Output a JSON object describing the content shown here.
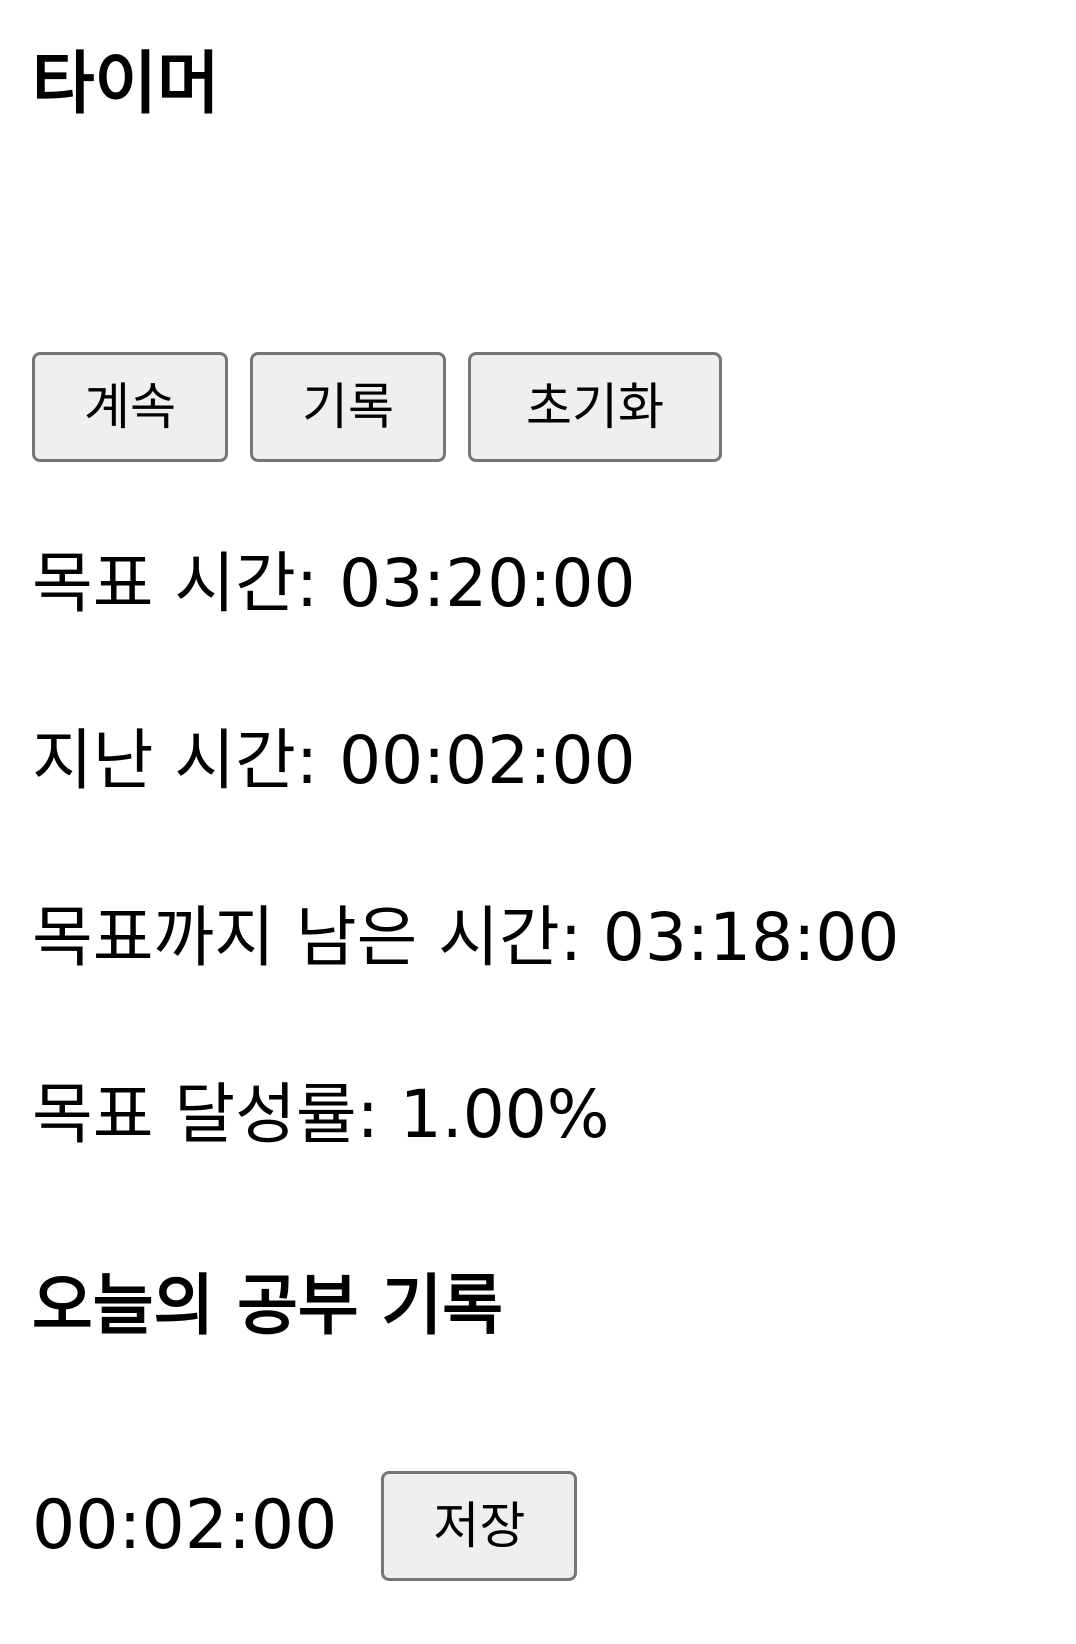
{
  "timer": {
    "title": "타이머",
    "buttons": {
      "resume": "계속",
      "record": "기록",
      "reset": "초기화"
    },
    "stats": {
      "target": "목표 시간: 03:20:00",
      "elapsed": "지난 시간: 00:02:00",
      "remaining": "목표까지 남은 시간: 03:18:00",
      "rate": "목표 달성률: 1.00%"
    }
  },
  "today": {
    "title": "오늘의 공부 기록",
    "record_time": "00:02:00",
    "save_label": "저장"
  }
}
